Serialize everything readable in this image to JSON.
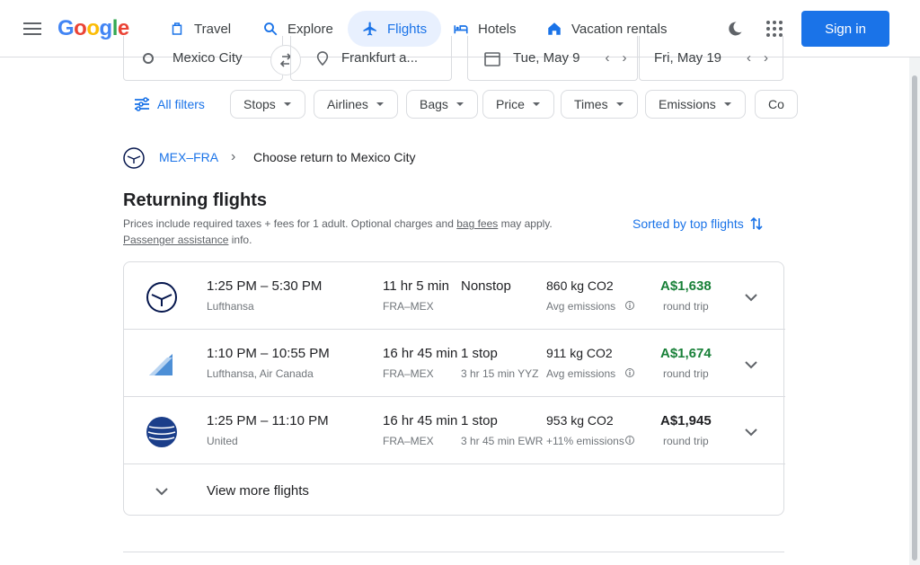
{
  "header": {
    "logo": "Google",
    "nav": [
      {
        "label": "Travel"
      },
      {
        "label": "Explore"
      },
      {
        "label": "Flights"
      },
      {
        "label": "Hotels"
      },
      {
        "label": "Vacation rentals"
      }
    ],
    "signin_label": "Sign in"
  },
  "search": {
    "origin": "Mexico City",
    "destination": "Frankfurt a...",
    "depart_date": "Tue, May 9",
    "return_date": "Fri, May 19"
  },
  "filters": {
    "all_filters": "All filters",
    "stops": "Stops",
    "airlines": "Airlines",
    "bags": "Bags",
    "price": "Price",
    "times": "Times",
    "emissions": "Emissions",
    "more": "Co"
  },
  "breadcrumb": {
    "route": "MEX–FRA",
    "current": "Choose return to Mexico City"
  },
  "results": {
    "title": "Returning flights",
    "disclaimer_start": "Prices include required taxes + fees for 1 adult. Optional charges and ",
    "disclaimer_link1": "bag fees",
    "disclaimer_mid": " may apply.",
    "disclaimer_link2": "Passenger assistance",
    "disclaimer_end": " info.",
    "sort_label": "Sorted by top flights",
    "view_more": "View more flights",
    "flights": [
      {
        "times": "1:25 PM – 5:30 PM",
        "carrier": "Lufthansa",
        "duration": "11 hr 5 min",
        "route": "FRA–MEX",
        "stops": "Nonstop",
        "layover": "",
        "emissions": "860 kg CO2",
        "emissions_note": "Avg emissions",
        "price": "A$1,638",
        "trip": "round trip"
      },
      {
        "times": "1:10 PM – 10:55 PM",
        "carrier": "Lufthansa, Air Canada",
        "duration": "16 hr 45 min",
        "route": "FRA–MEX",
        "stops": "1 stop",
        "layover": "3 hr 15 min YYZ",
        "emissions": "911 kg CO2",
        "emissions_note": "Avg emissions",
        "price": "A$1,674",
        "trip": "round trip"
      },
      {
        "times": "1:25 PM – 11:10 PM",
        "carrier": "United",
        "duration": "16 hr 45 min",
        "route": "FRA–MEX",
        "stops": "1 stop",
        "layover": "3 hr 45 min EWR",
        "emissions": "953 kg CO2",
        "emissions_note": "+11% emissions",
        "price": "A$1,945",
        "trip": "round trip"
      }
    ]
  },
  "colors": {
    "accent": "#1a73e8",
    "price_green": "#188038",
    "border": "#dadce0"
  }
}
